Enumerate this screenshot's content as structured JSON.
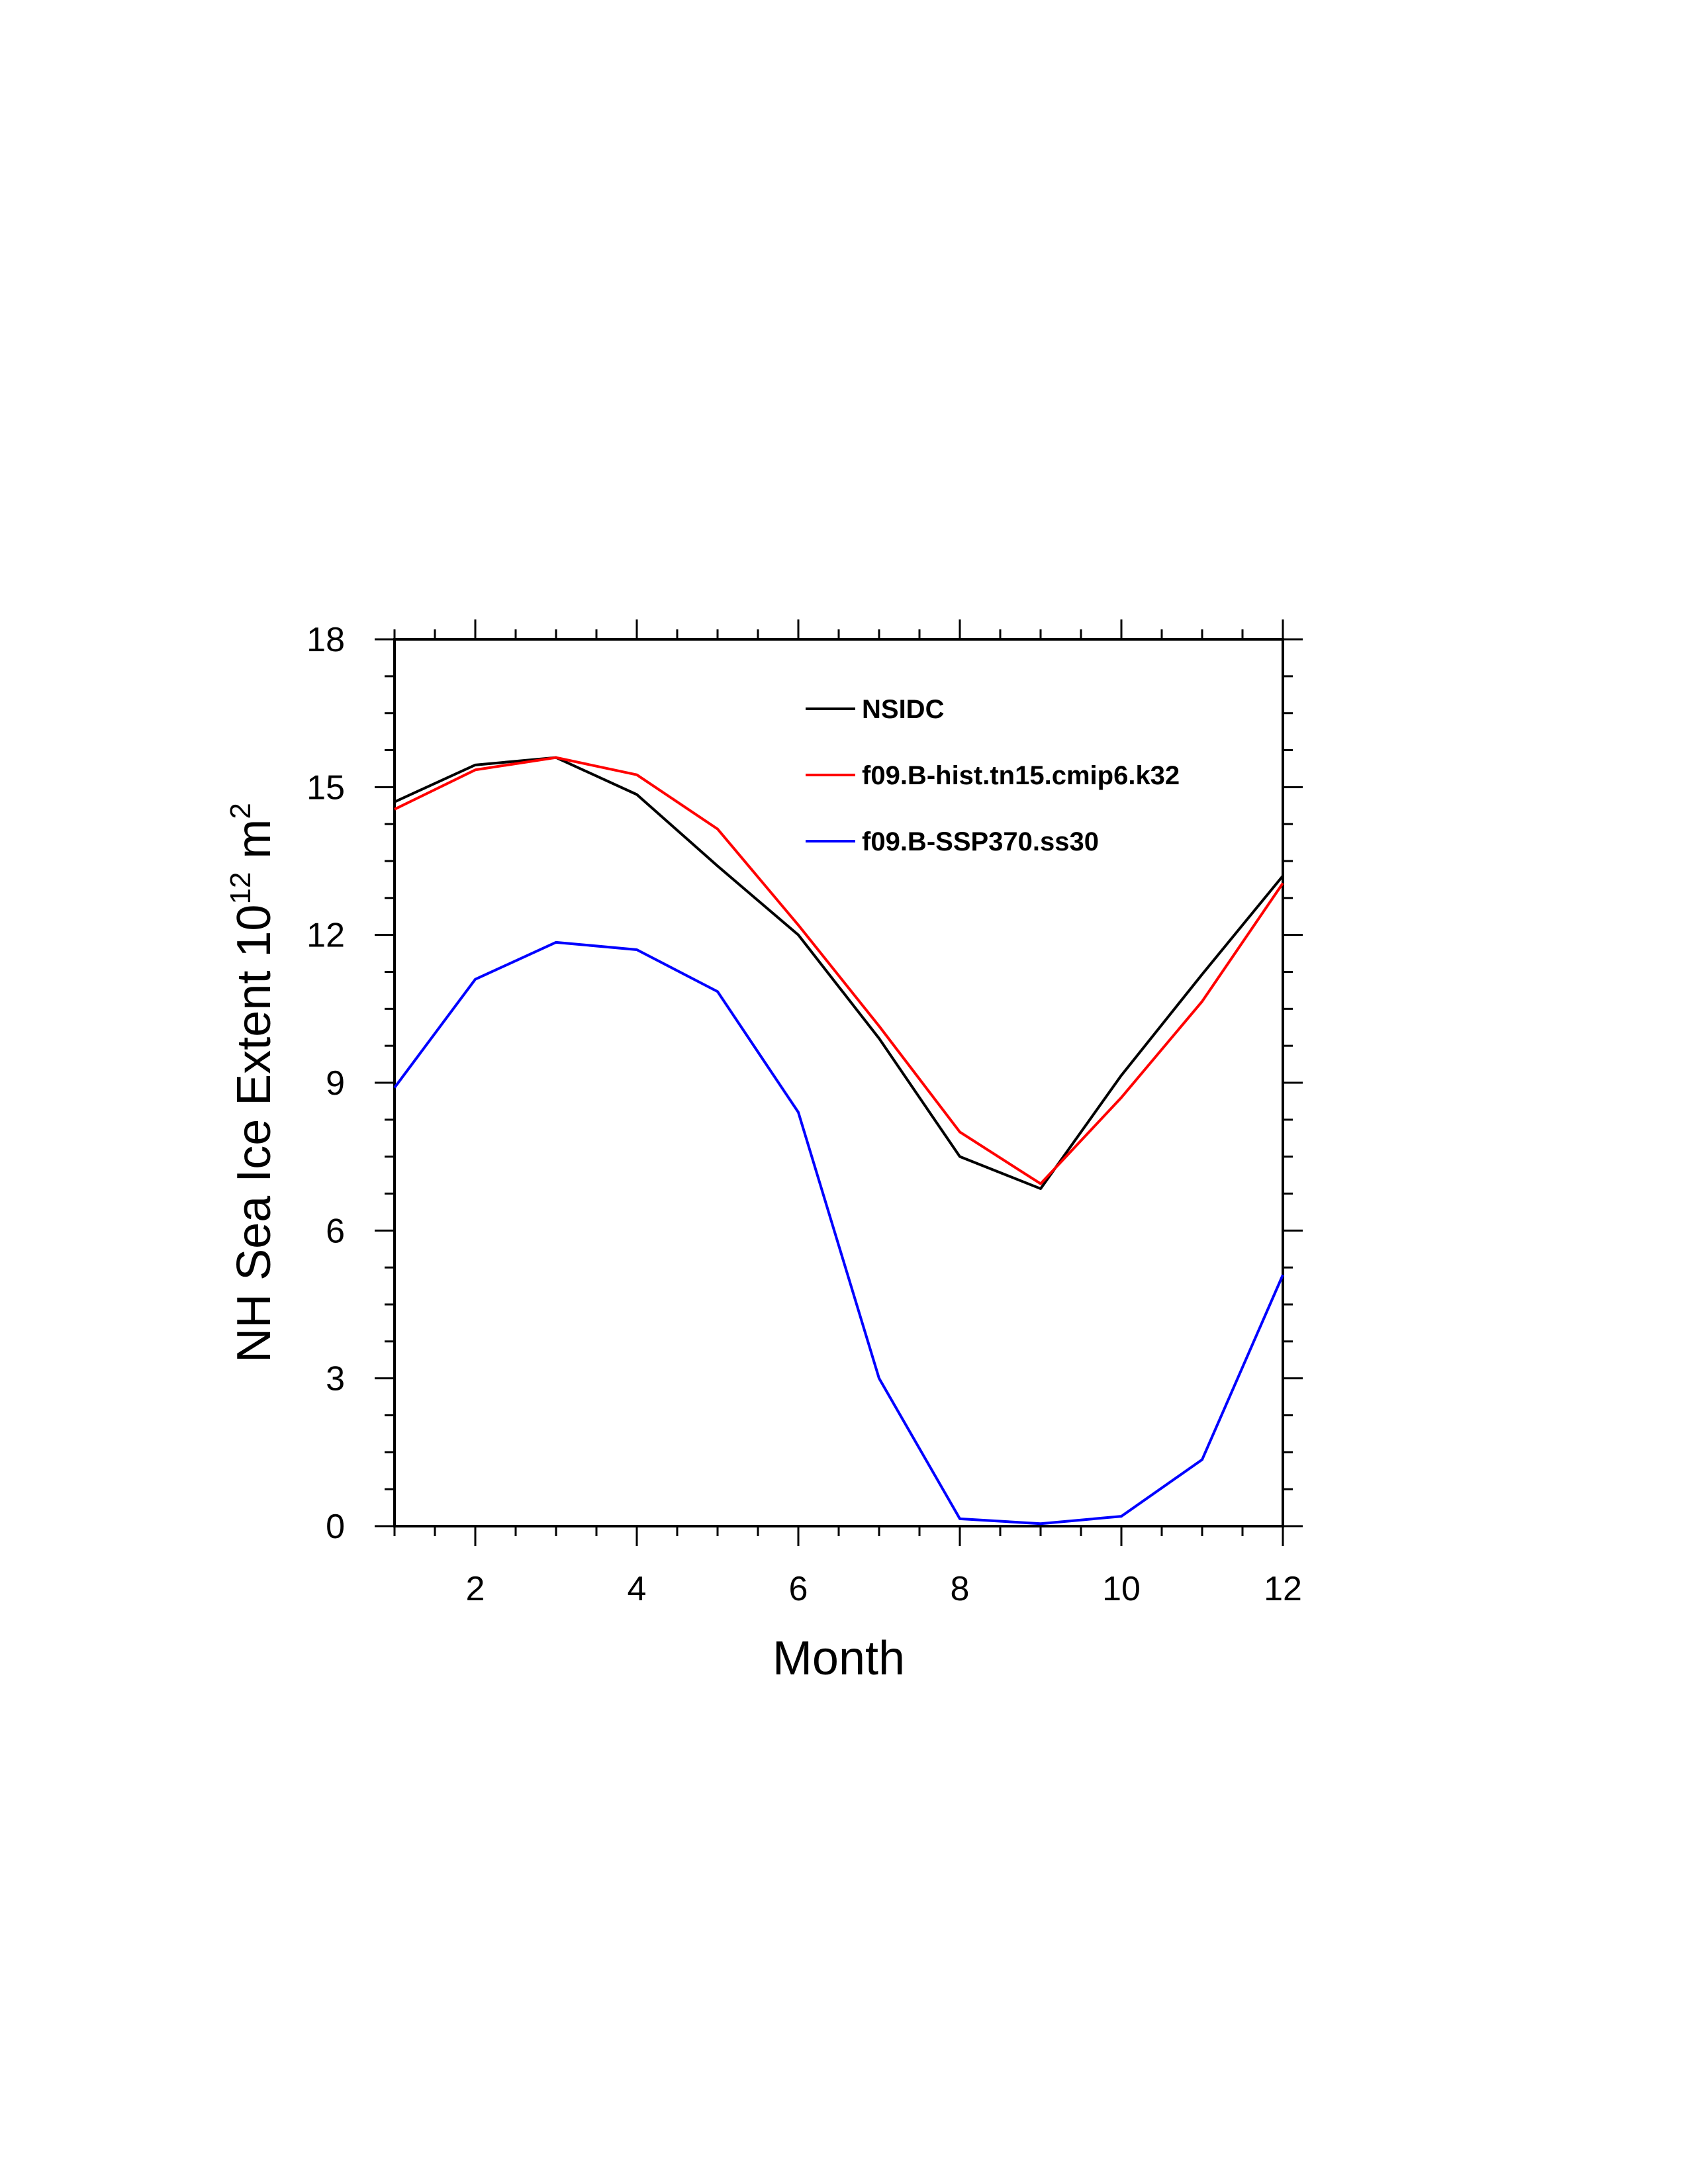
{
  "chart_data": {
    "type": "line",
    "xlabel": "Month",
    "ylabel": "NH Sea Ice Extent 10",
    "ylabel_sup1": "12",
    "ylabel_mid": " m",
    "ylabel_sup2": "2",
    "xlim": [
      1,
      12
    ],
    "ylim": [
      0,
      18
    ],
    "x_ticks": [
      2,
      4,
      6,
      8,
      10,
      12
    ],
    "y_ticks": [
      0,
      3,
      6,
      9,
      12,
      15,
      18
    ],
    "x_tick_labels": [
      "2",
      "4",
      "6",
      "8",
      "10",
      "12"
    ],
    "y_tick_labels": [
      "0",
      "3",
      "6",
      "9",
      "12",
      "15",
      "18"
    ],
    "grid": false,
    "legend_position": "top-right inside plot",
    "x": [
      1,
      2,
      3,
      4,
      5,
      6,
      7,
      8,
      9,
      10,
      11,
      12
    ],
    "series": [
      {
        "name": "NSIDC",
        "color": "#000000",
        "values": [
          14.7,
          15.45,
          15.6,
          14.85,
          13.4,
          12.0,
          9.9,
          7.5,
          6.85,
          9.15,
          11.2,
          13.2
        ]
      },
      {
        "name": "f09.B-hist.tn15.cmip6.k32",
        "color": "#ff0000",
        "values": [
          14.55,
          15.35,
          15.6,
          15.25,
          14.15,
          12.2,
          10.15,
          8.0,
          6.95,
          8.7,
          10.65,
          13.05
        ]
      },
      {
        "name": "f09.B-SSP370.ss30",
        "color": "#0000ff",
        "values": [
          8.9,
          11.1,
          11.85,
          11.7,
          10.85,
          8.4,
          3.0,
          0.15,
          0.05,
          0.2,
          1.35,
          5.1
        ]
      }
    ]
  }
}
